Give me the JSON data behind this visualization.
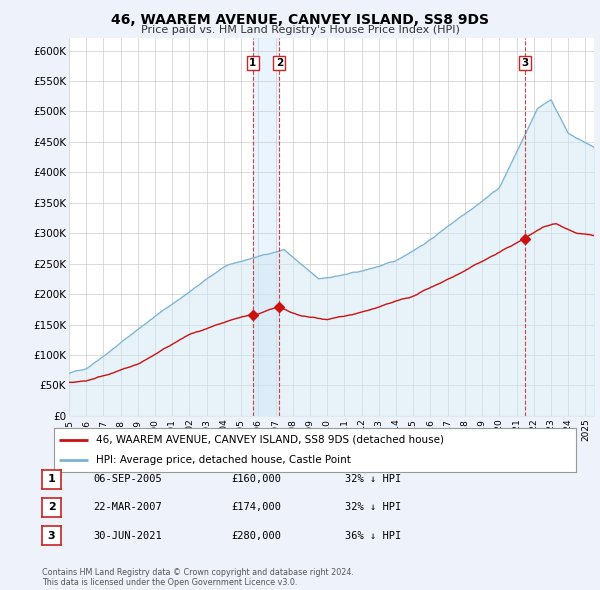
{
  "title": "46, WAAREM AVENUE, CANVEY ISLAND, SS8 9DS",
  "subtitle": "Price paid vs. HM Land Registry's House Price Index (HPI)",
  "ylabel_ticks": [
    "£0",
    "£50K",
    "£100K",
    "£150K",
    "£200K",
    "£250K",
    "£300K",
    "£350K",
    "£400K",
    "£450K",
    "£500K",
    "£550K",
    "£600K"
  ],
  "ytick_values": [
    0,
    50000,
    100000,
    150000,
    200000,
    250000,
    300000,
    350000,
    400000,
    450000,
    500000,
    550000,
    600000
  ],
  "ylim": [
    0,
    620000
  ],
  "background_color": "#eef2fb",
  "plot_bg_color": "#ffffff",
  "grid_color": "#cccccc",
  "hpi_color": "#7ab3d4",
  "hpi_fill_color": "#d0e8f5",
  "price_color": "#cc1111",
  "sale_marker_color": "#cc1111",
  "vline_color": "#cc2222",
  "highlight_fill": "#ddeeff",
  "transactions": [
    {
      "label": "1",
      "date_str": "06-SEP-2005",
      "price": 160000,
      "hpi_pct": "32% ↓ HPI",
      "x": 2005.68
    },
    {
      "label": "2",
      "date_str": "22-MAR-2007",
      "price": 174000,
      "hpi_pct": "32% ↓ HPI",
      "x": 2007.22
    },
    {
      "label": "3",
      "date_str": "30-JUN-2021",
      "price": 280000,
      "hpi_pct": "36% ↓ HPI",
      "x": 2021.5
    }
  ],
  "legend_label_red": "46, WAAREM AVENUE, CANVEY ISLAND, SS8 9DS (detached house)",
  "legend_label_blue": "HPI: Average price, detached house, Castle Point",
  "footnote": "Contains HM Land Registry data © Crown copyright and database right 2024.\nThis data is licensed under the Open Government Licence v3.0.",
  "xmin": 1995.0,
  "xmax": 2025.5
}
